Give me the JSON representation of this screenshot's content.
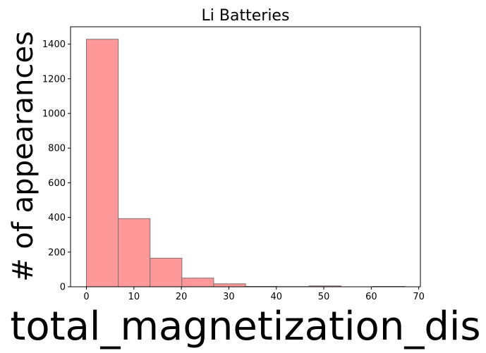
{
  "chart_data": {
    "type": "bar",
    "title": "Li Batteries",
    "xlabel": "total_magnetization_dis",
    "ylabel": "# of appearances",
    "bins": [
      {
        "x0": 0.0,
        "x1": 6.7,
        "count": 1428
      },
      {
        "x0": 6.7,
        "x1": 13.4,
        "count": 393
      },
      {
        "x0": 13.4,
        "x1": 20.1,
        "count": 165
      },
      {
        "x0": 20.1,
        "x1": 26.8,
        "count": 50
      },
      {
        "x0": 26.8,
        "x1": 33.5,
        "count": 17
      },
      {
        "x0": 33.5,
        "x1": 40.2,
        "count": 2
      },
      {
        "x0": 40.2,
        "x1": 46.9,
        "count": 1
      },
      {
        "x0": 46.9,
        "x1": 53.6,
        "count": 5
      },
      {
        "x0": 53.6,
        "x1": 60.3,
        "count": 0
      },
      {
        "x0": 60.3,
        "x1": 67.0,
        "count": 2
      }
    ],
    "xlim": [
      -3.35,
      70.35
    ],
    "ylim": [
      0,
      1500
    ],
    "xticks": [
      0,
      10,
      20,
      30,
      40,
      50,
      60,
      70
    ],
    "yticks": [
      0,
      200,
      400,
      600,
      800,
      1000,
      1200,
      1400
    ],
    "bar_color": "#ff9999",
    "edge_color": "#7f6f6f",
    "grid": false
  }
}
